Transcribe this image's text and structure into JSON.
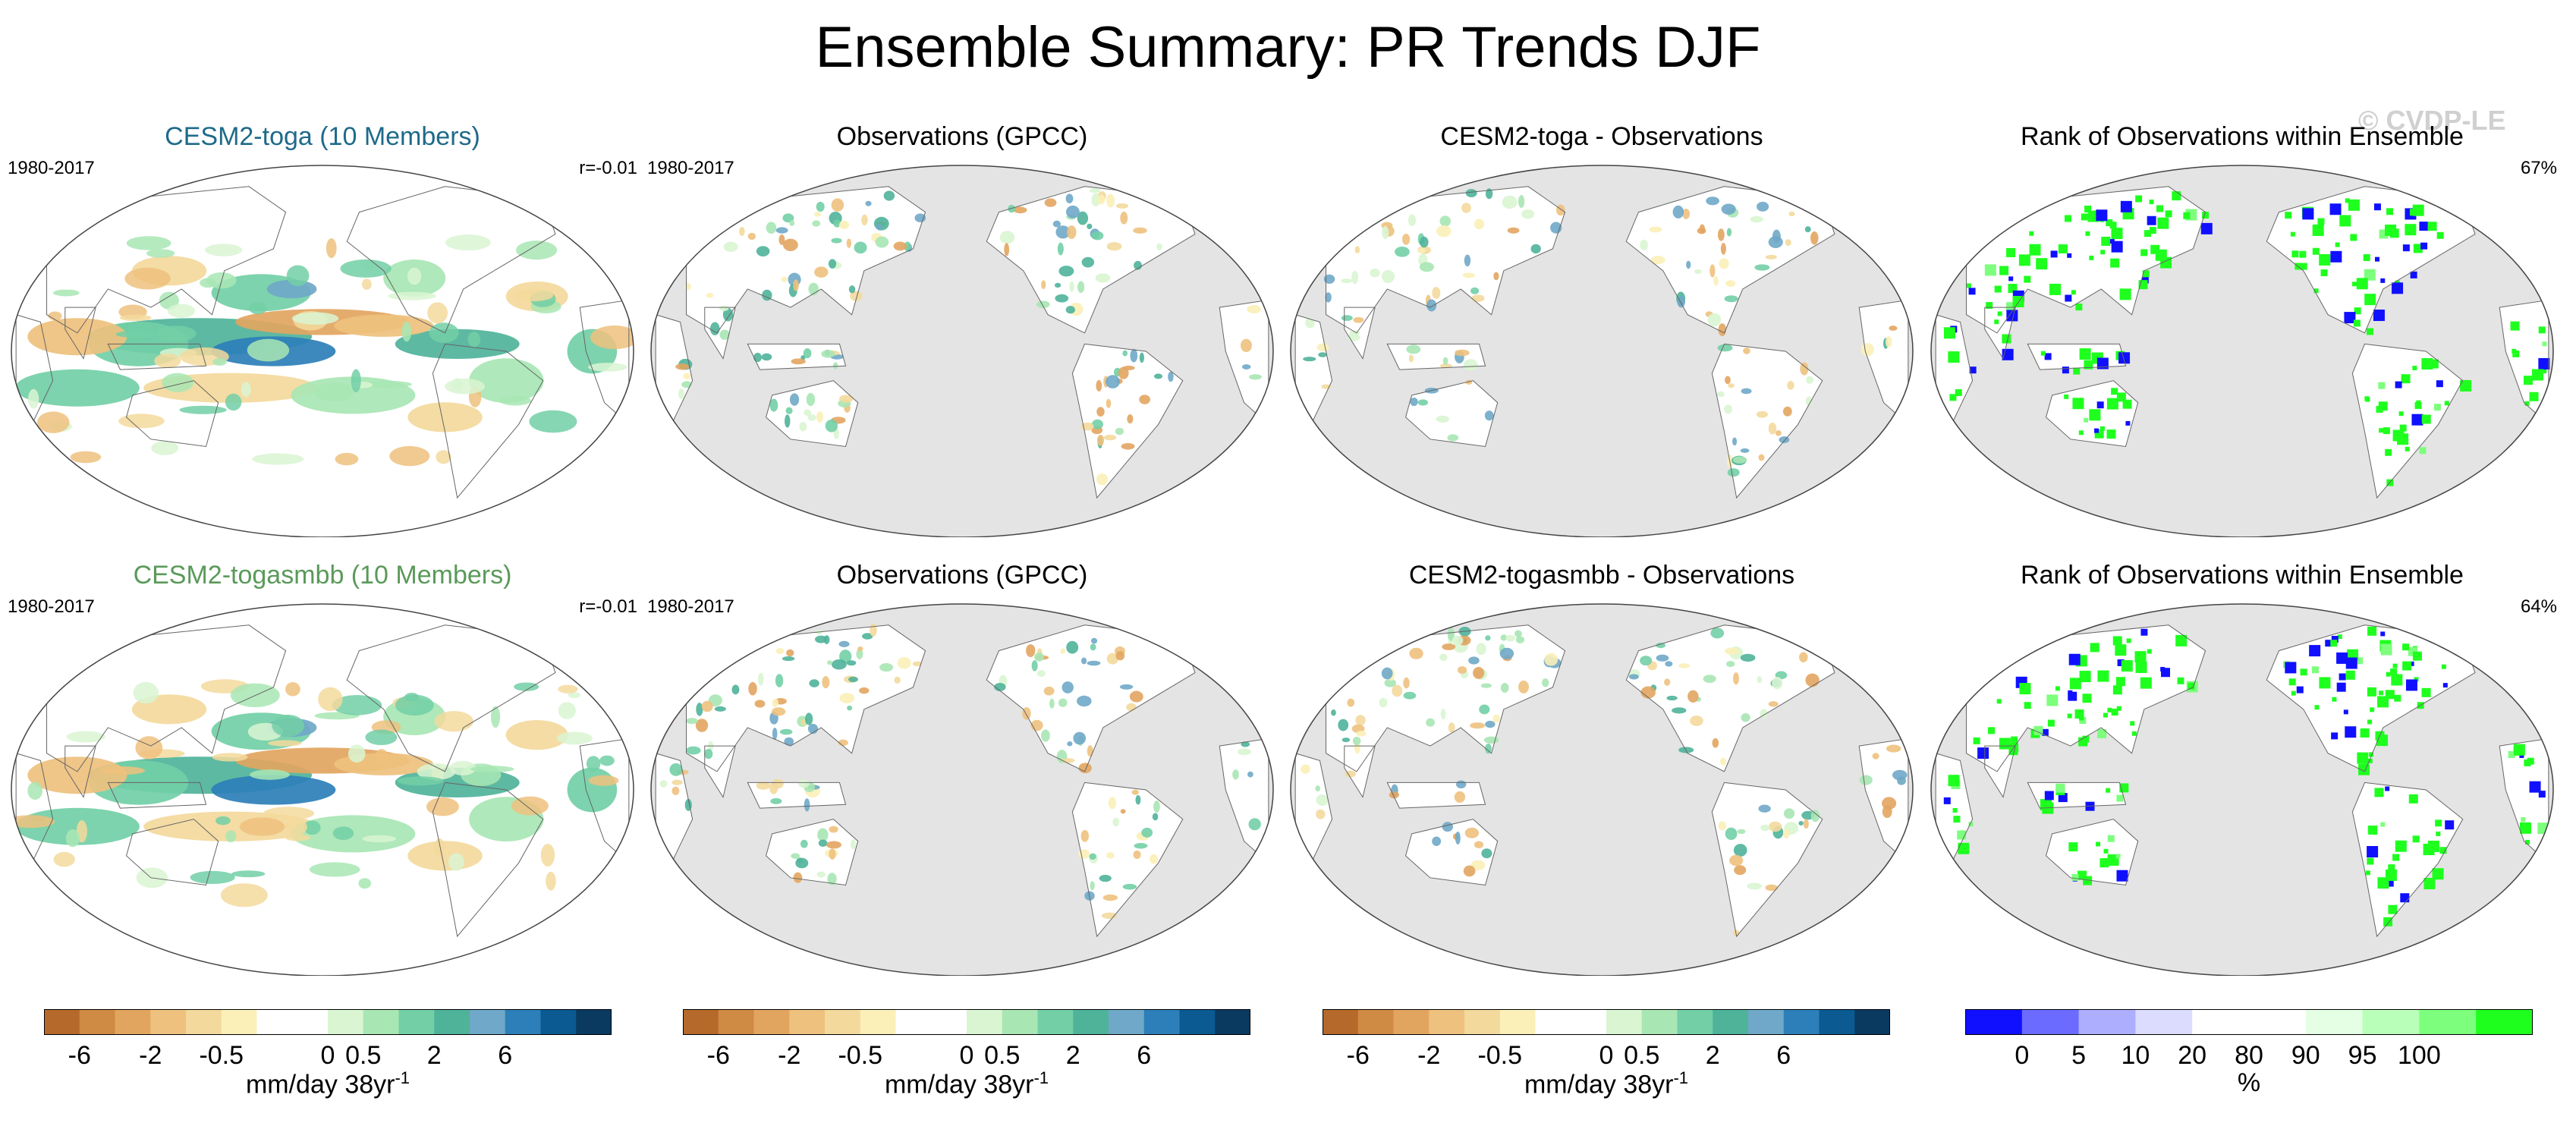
{
  "title": "Ensemble Summary: PR Trends DJF",
  "watermark": "© CVDP-LE",
  "rows": [
    {
      "panels": [
        {
          "title": "CESM2-toga (10 Members)",
          "title_color": "#1f6a8a",
          "left": "1980-2017",
          "right": "r=-0.01",
          "kind": "model"
        },
        {
          "title": "Observations (GPCC)",
          "title_color": "#000000",
          "left": "1980-2017",
          "right": "",
          "kind": "obs"
        },
        {
          "title": "CESM2-toga - Observations",
          "title_color": "#000000",
          "left": "",
          "right": "",
          "kind": "diff"
        },
        {
          "title": "Rank of Observations within Ensemble",
          "title_color": "#000000",
          "left": "",
          "right": "67%",
          "kind": "rank"
        }
      ]
    },
    {
      "panels": [
        {
          "title": "CESM2-togasmbb (10 Members)",
          "title_color": "#5a9a5a",
          "left": "1980-2017",
          "right": "r=-0.01",
          "kind": "model"
        },
        {
          "title": "Observations (GPCC)",
          "title_color": "#000000",
          "left": "1980-2017",
          "right": "",
          "kind": "obs"
        },
        {
          "title": "CESM2-togasmbb - Observations",
          "title_color": "#000000",
          "left": "",
          "right": "",
          "kind": "diff"
        },
        {
          "title": "Rank of Observations within Ensemble",
          "title_color": "#000000",
          "left": "",
          "right": "64%",
          "kind": "rank"
        }
      ]
    }
  ],
  "colorbars": [
    {
      "unit": "mm/day 38yr",
      "unit_sup": "-1",
      "ticks": [
        "-6",
        "-2",
        "-0.5",
        "0",
        "0.5",
        "2",
        "6"
      ],
      "colors": [
        "#b5692a",
        "#cf8a43",
        "#e2a560",
        "#eec17e",
        "#f3d99c",
        "#fbf0b8",
        "#ffffff",
        "#ffffff",
        "#d9f5d2",
        "#a8e6b4",
        "#72cfa6",
        "#4fb39a",
        "#6fa8c8",
        "#2c7fb8",
        "#0b5a92",
        "#0a3a60"
      ]
    },
    {
      "unit": "mm/day 38yr",
      "unit_sup": "-1",
      "ticks": [
        "-6",
        "-2",
        "-0.5",
        "0",
        "0.5",
        "2",
        "6"
      ],
      "colors": [
        "#b5692a",
        "#cf8a43",
        "#e2a560",
        "#eec17e",
        "#f3d99c",
        "#fbf0b8",
        "#ffffff",
        "#ffffff",
        "#d9f5d2",
        "#a8e6b4",
        "#72cfa6",
        "#4fb39a",
        "#6fa8c8",
        "#2c7fb8",
        "#0b5a92",
        "#0a3a60"
      ]
    },
    {
      "unit": "mm/day 38yr",
      "unit_sup": "-1",
      "ticks": [
        "-6",
        "-2",
        "-0.5",
        "0",
        "0.5",
        "2",
        "6"
      ],
      "colors": [
        "#b5692a",
        "#cf8a43",
        "#e2a560",
        "#eec17e",
        "#f3d99c",
        "#fbf0b8",
        "#ffffff",
        "#ffffff",
        "#d9f5d2",
        "#a8e6b4",
        "#72cfa6",
        "#4fb39a",
        "#6fa8c8",
        "#2c7fb8",
        "#0b5a92",
        "#0a3a60"
      ]
    },
    {
      "unit": "%",
      "unit_sup": "",
      "ticks": [
        "0",
        "5",
        "10",
        "20",
        "80",
        "90",
        "95",
        "100"
      ],
      "colors": [
        "#1010ff",
        "#6b6bff",
        "#aeaeff",
        "#dcdcff",
        "#ffffff",
        "#ffffff",
        "#e4ffe4",
        "#b9ffb9",
        "#7dff7d",
        "#1eff1e"
      ]
    }
  ],
  "colors": {
    "ocean_masked": "#e4e4e4",
    "land_outline": "#666666",
    "rank_low": "#1010ff",
    "rank_high": "#1eff1e"
  },
  "chart_data": {
    "type": "heatmap",
    "title": "Ensemble Summary: PR Trends DJF",
    "projection": "Robinson (Pacific-centered)",
    "period": "1980-2017",
    "season": "DJF",
    "units": "mm/day 38yr-1",
    "panels": [
      {
        "row": 1,
        "name": "CESM2-toga (10 Members)",
        "pattern_correlation": -0.01
      },
      {
        "row": 1,
        "name": "Observations (GPCC)"
      },
      {
        "row": 1,
        "name": "CESM2-toga - Observations"
      },
      {
        "row": 1,
        "name": "Rank of Observations within Ensemble",
        "percent": 67
      },
      {
        "row": 2,
        "name": "CESM2-togasmbb (10 Members)",
        "pattern_correlation": -0.01
      },
      {
        "row": 2,
        "name": "Observations (GPCC)"
      },
      {
        "row": 2,
        "name": "CESM2-togasmbb - Observations"
      },
      {
        "row": 2,
        "name": "Rank of Observations within Ensemble",
        "percent": 64
      }
    ],
    "trend_levels": [
      -6,
      -2,
      -0.5,
      0,
      0.5,
      2,
      6
    ],
    "rank_levels": [
      0,
      5,
      10,
      20,
      80,
      90,
      95,
      100
    ]
  }
}
